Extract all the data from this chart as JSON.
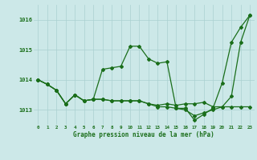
{
  "title": "Graphe pression niveau de la mer (hPa)",
  "x_ticks": [
    0,
    1,
    2,
    3,
    4,
    5,
    6,
    7,
    8,
    9,
    10,
    11,
    12,
    13,
    14,
    15,
    16,
    17,
    18,
    19,
    20,
    21,
    22,
    23
  ],
  "ylim": [
    1012.5,
    1016.5
  ],
  "yticks": [
    1013,
    1014,
    1015,
    1016
  ],
  "background_color": "#cce8e8",
  "grid_color": "#aad0d0",
  "line_color": "#1a6e1a",
  "line1_y": [
    1014.0,
    1013.85,
    1013.65,
    1013.2,
    1013.5,
    1013.3,
    1013.35,
    1013.35,
    1013.3,
    1013.3,
    1013.3,
    1013.3,
    1013.2,
    1013.1,
    1013.1,
    1013.05,
    1013.0,
    1012.8,
    1012.9,
    1013.0,
    1013.1,
    1013.1,
    1013.1,
    1013.1
  ],
  "line2_y": [
    1014.0,
    1013.85,
    1013.65,
    1013.2,
    1013.5,
    1013.3,
    1013.35,
    1014.35,
    1014.4,
    1014.45,
    1015.12,
    1015.12,
    1014.7,
    1014.55,
    1014.6,
    1013.05,
    1013.05,
    1012.65,
    1012.85,
    1013.05,
    1013.9,
    1015.25,
    1015.75,
    1016.15
  ],
  "line3_y": [
    1014.0,
    1013.85,
    1013.65,
    1013.2,
    1013.5,
    1013.3,
    1013.35,
    1013.35,
    1013.3,
    1013.3,
    1013.3,
    1013.3,
    1013.2,
    1013.15,
    1013.2,
    1013.15,
    1013.2,
    1013.2,
    1013.25,
    1013.1,
    1013.1,
    1013.45,
    1015.25,
    1016.15
  ]
}
